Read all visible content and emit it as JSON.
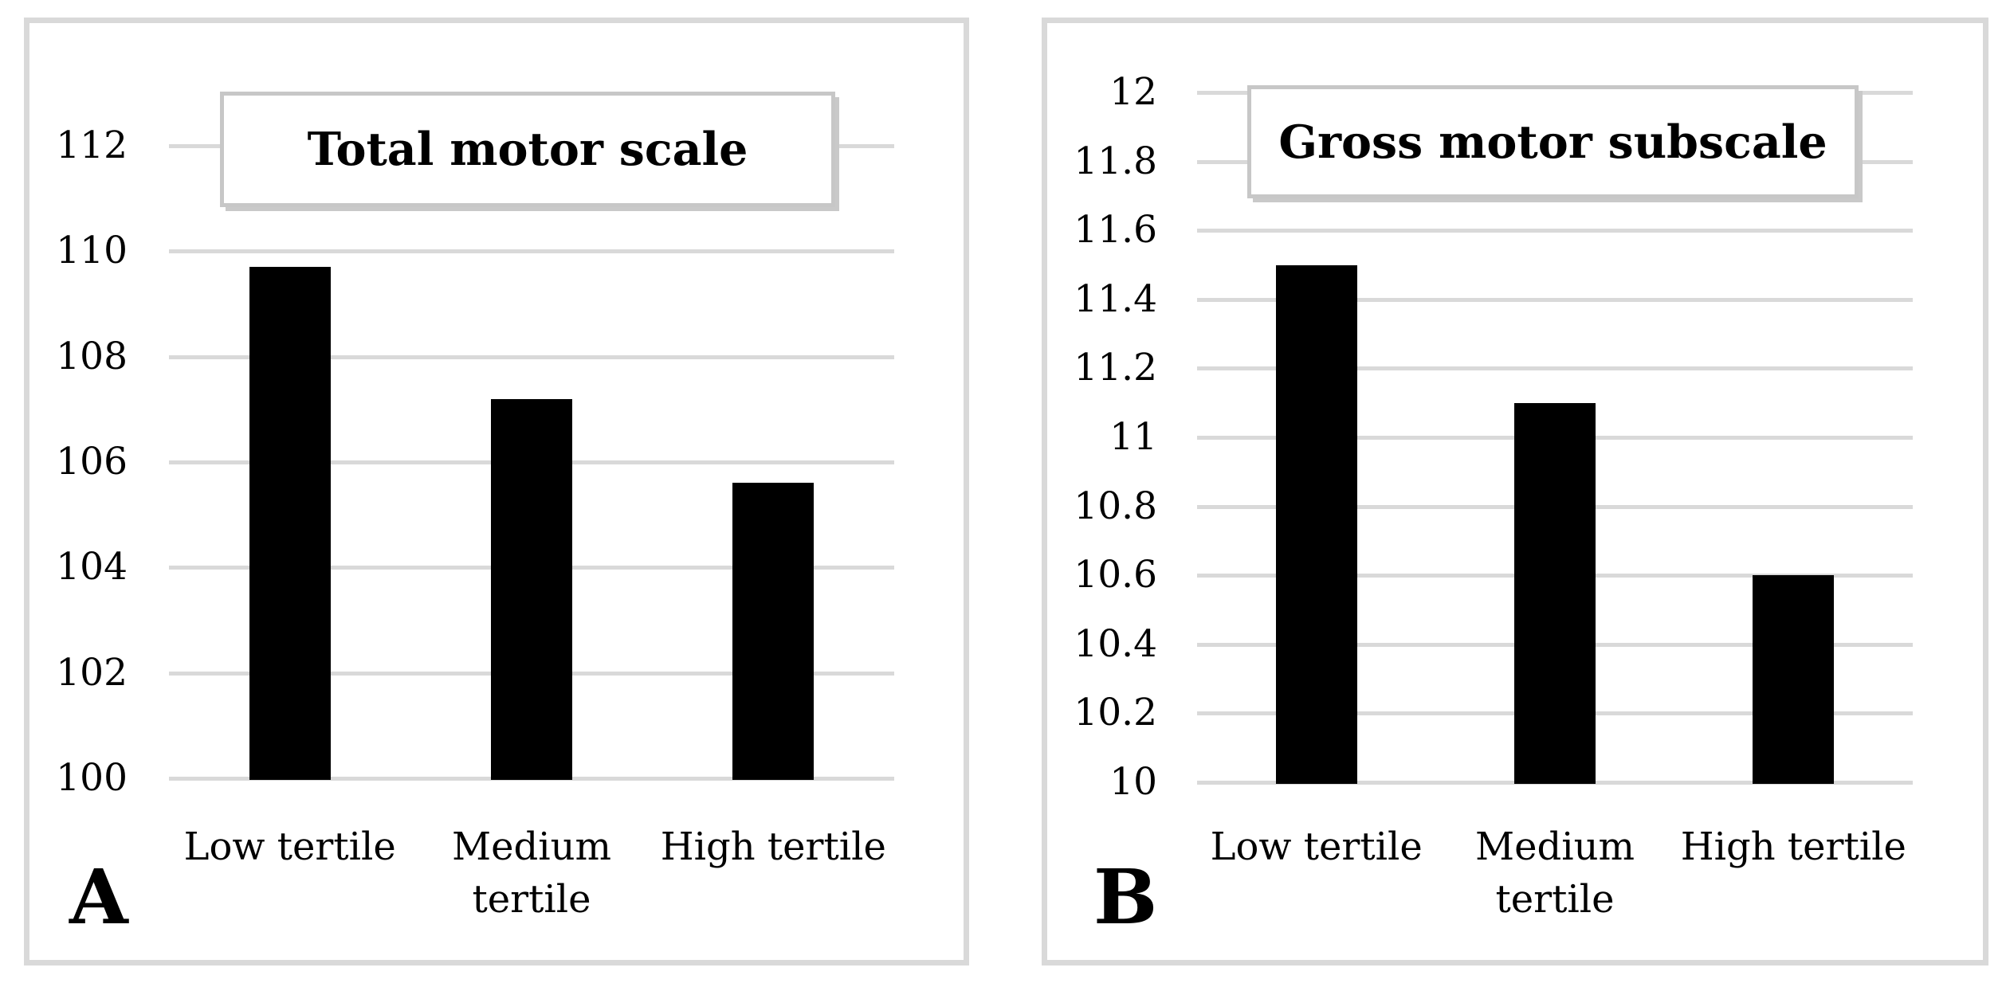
{
  "figure_title": "Motor scale scores by tertile, two-panel bar figure",
  "colors": {
    "bar": "#000000",
    "gridline": "#d9d9d9",
    "panel_border": "#d9d9d9",
    "title_box_border": "#c7c7c7",
    "title_box_shadow": "#c9c9c9",
    "text": "#000000",
    "background": "#ffffff"
  },
  "chart_data": [
    {
      "type": "bar",
      "panel_label": "A",
      "title": "Total motor scale",
      "categories": [
        "Low tertile",
        "Medium tertile",
        "High tertile"
      ],
      "categories_display": [
        "Low tertile",
        "Medium\ntertile",
        "High tertile"
      ],
      "values": [
        109.7,
        107.2,
        105.6
      ],
      "ylim": [
        100,
        112
      ],
      "ytick_step": 2,
      "yticks": [
        "100",
        "102",
        "104",
        "106",
        "108",
        "110",
        "112"
      ],
      "xlabel": "",
      "ylabel": "",
      "grid": true,
      "legend": false,
      "bar_color": "#000000"
    },
    {
      "type": "bar",
      "panel_label": "B",
      "title": "Gross motor subscale",
      "categories": [
        "Low tertile",
        "Medium tertile",
        "High tertile"
      ],
      "categories_display": [
        "Low tertile",
        "Medium\ntertile",
        "High tertile"
      ],
      "values": [
        11.5,
        11.1,
        10.6
      ],
      "ylim": [
        10,
        12
      ],
      "ytick_step": 0.2,
      "yticks": [
        "10",
        "10.2",
        "10.4",
        "10.6",
        "10.8",
        "11",
        "11.2",
        "11.4",
        "11.6",
        "11.8",
        "12"
      ],
      "xlabel": "",
      "ylabel": "",
      "grid": true,
      "legend": false,
      "bar_color": "#000000"
    }
  ]
}
